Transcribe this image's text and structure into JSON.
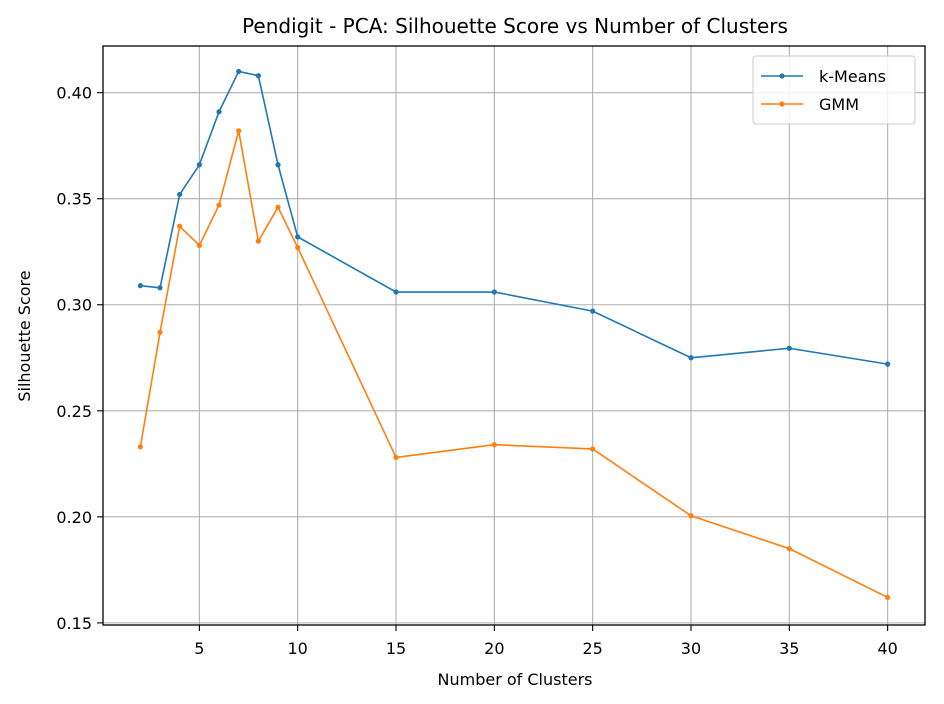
{
  "chart_data": {
    "type": "line",
    "title": "Pendigit - PCA: Silhouette Score vs Number of Clusters",
    "xlabel": "Number of Clusters",
    "ylabel": "Silhouette Score",
    "x": [
      2,
      3,
      4,
      5,
      6,
      7,
      8,
      9,
      10,
      15,
      20,
      25,
      30,
      35,
      40
    ],
    "xlim": [
      0.1,
      41.9
    ],
    "ylim": [
      0.149,
      0.422
    ],
    "xticks": [
      5,
      10,
      15,
      20,
      25,
      30,
      35,
      40
    ],
    "xtick_labels": [
      "5",
      "10",
      "15",
      "20",
      "25",
      "30",
      "35",
      "40"
    ],
    "yticks": [
      0.15,
      0.2,
      0.25,
      0.3,
      0.35,
      0.4
    ],
    "ytick_labels": [
      "0.15",
      "0.20",
      "0.25",
      "0.30",
      "0.35",
      "0.40"
    ],
    "grid": true,
    "legend_position": "top-right",
    "series": [
      {
        "name": "k-Means",
        "color": "#1f77b4",
        "values": [
          0.309,
          0.308,
          0.352,
          0.366,
          0.391,
          0.41,
          0.408,
          0.366,
          0.332,
          0.306,
          0.306,
          0.297,
          0.275,
          0.2795,
          0.272
        ]
      },
      {
        "name": "GMM",
        "color": "#ff7f0e",
        "values": [
          0.233,
          0.287,
          0.337,
          0.328,
          0.347,
          0.382,
          0.33,
          0.346,
          0.327,
          0.228,
          0.234,
          0.232,
          0.2005,
          0.185,
          0.162
        ]
      }
    ]
  }
}
